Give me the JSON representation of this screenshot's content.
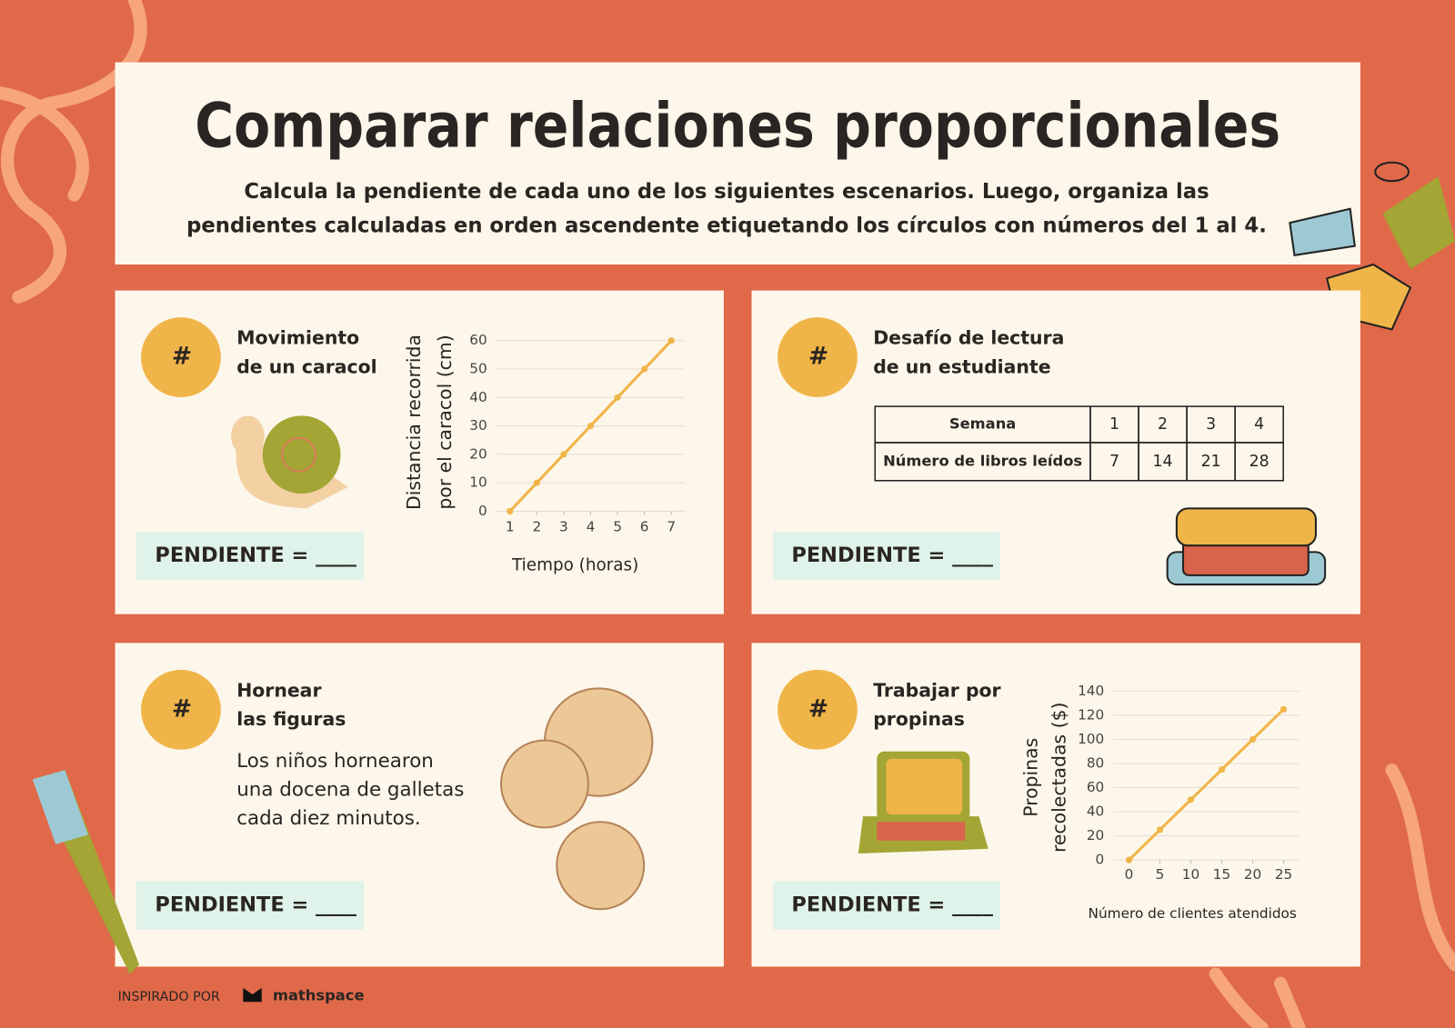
{
  "header": {
    "title": "Comparar relaciones proporcionales",
    "instructions": [
      "Calcula la pendiente de cada uno de los siguientes escenarios. Luego, organiza las",
      "pendientes calculadas en orden ascendente etiquetando los círculos con números del 1 al 4."
    ]
  },
  "cards": [
    {
      "badge": "#",
      "title": [
        "Movimiento",
        "de un caracol"
      ],
      "answer": "PENDIENTE = ____"
    },
    {
      "badge": "#",
      "title": [
        "Desafío de lectura",
        "de un estudiante"
      ],
      "answer": "PENDIENTE = ____",
      "table": {
        "rows": [
          [
            "Semana",
            1,
            2,
            3,
            4
          ],
          [
            "Número de libros leídos",
            7,
            14,
            21,
            28
          ]
        ]
      }
    },
    {
      "badge": "#",
      "title": [
        "Hornear",
        "las figuras"
      ],
      "answer": "PENDIENTE = ____",
      "text": [
        "Los niños hornearon",
        "una docena de galletas",
        "cada diez minutos."
      ]
    },
    {
      "badge": "#",
      "title": [
        "Trabajar por",
        "propinas"
      ],
      "answer": "PENDIENTE = ____"
    }
  ],
  "chart_data": [
    {
      "type": "line",
      "x_label": "Tiempo (horas)",
      "y_label": [
        "Distancia recorrida",
        "por el caracol (cm)"
      ],
      "x": [
        1,
        2,
        3,
        4,
        5,
        6,
        7
      ],
      "values": [
        0,
        10,
        20,
        30,
        40,
        50,
        60
      ],
      "color": "#f0b548",
      "xlim": [
        0.5,
        7.5
      ],
      "ylim": [
        0,
        60
      ],
      "xticks": [
        1,
        2,
        3,
        4,
        5,
        6,
        7
      ],
      "yticks": [
        0,
        10,
        20,
        30,
        40,
        50,
        60
      ],
      "grid": true
    },
    {
      "type": "line",
      "x_label": "Número de clientes atendidos",
      "y_label": [
        "Propinas",
        "recolectadas ($)"
      ],
      "x": [
        0,
        5,
        10,
        15,
        20,
        25
      ],
      "values": [
        0,
        25,
        50,
        75,
        100,
        125
      ],
      "color": "#f0b548",
      "xlim": [
        -2.5,
        27.5
      ],
      "ylim": [
        0,
        140
      ],
      "xticks": [
        0,
        5,
        10,
        15,
        20,
        25
      ],
      "yticks": [
        0,
        20,
        40,
        60,
        80,
        100,
        120,
        140
      ],
      "grid": true
    }
  ],
  "footer": {
    "credit": "INSPIRADO POR",
    "brand": "mathspace"
  }
}
